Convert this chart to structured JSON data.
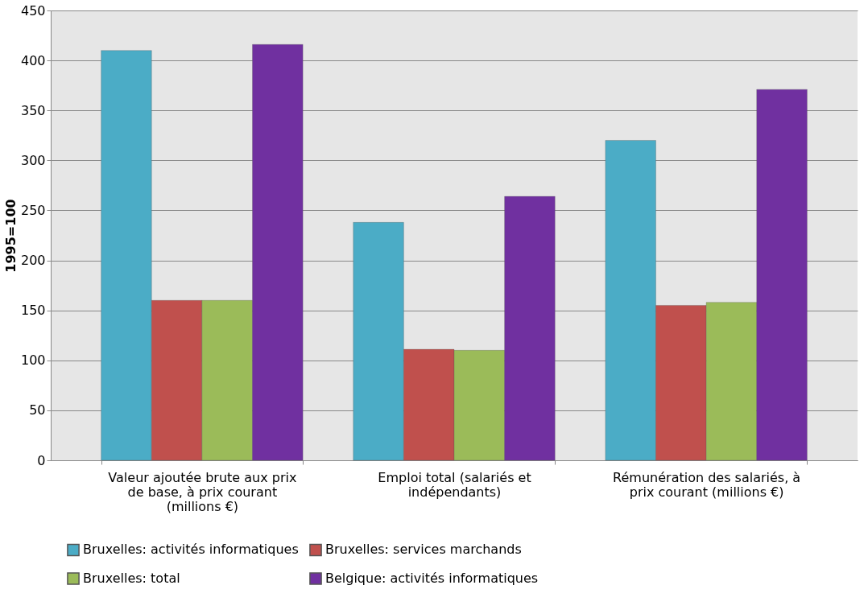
{
  "chart_data": {
    "type": "bar",
    "ylabel": "1995=100",
    "categories": [
      "Valeur ajoutée brute aux prix de base, à prix courant (millions €)",
      "Emploi total (salariés et indépendants)",
      "Rémunération des salariés, à prix courant (millions €)"
    ],
    "series": [
      {
        "name": "Bruxelles: activités informatiques",
        "color": "#4bacc6",
        "values": [
          410,
          238,
          320
        ]
      },
      {
        "name": "Bruxelles: services marchands",
        "color": "#c0504d",
        "values": [
          160,
          111,
          155
        ]
      },
      {
        "name": "Bruxelles: total",
        "color": "#9bbb59",
        "values": [
          160,
          110,
          158
        ]
      },
      {
        "name": "Belgique: activités informatiques",
        "color": "#7030a0",
        "values": [
          416,
          264,
          371
        ]
      }
    ],
    "ylim": [
      0,
      450
    ],
    "yticks": [
      0,
      50,
      100,
      150,
      200,
      250,
      300,
      350,
      400,
      450
    ],
    "grid": "y",
    "legend": "bottom"
  }
}
